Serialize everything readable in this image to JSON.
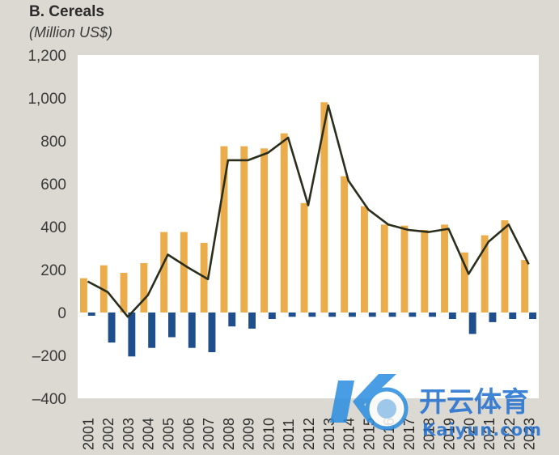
{
  "header": {
    "title": "B. Cereals",
    "subtitle": "(Million US$)"
  },
  "colors": {
    "background": "#dcd9d2",
    "plot_background": "#ffffff",
    "exports_bar": "#ebac4c",
    "imports_bar": "#1f4e8c",
    "line": "#2a2e1c"
  },
  "watermark": {
    "brand_cn": "开云体育",
    "brand_en": "Kaiyun.com"
  },
  "chart_data": {
    "type": "bar",
    "title": "B. Cereals",
    "subtitle": "(Million US$)",
    "xlabel": "",
    "ylabel": "",
    "categories": [
      "2001",
      "2002",
      "2003",
      "2004",
      "2005",
      "2006",
      "2007",
      "2008",
      "2009",
      "2010",
      "2011",
      "2012",
      "2013",
      "2014",
      "2015",
      "2016",
      "2017",
      "2018",
      "2019",
      "2020",
      "2021",
      "2022",
      "2023"
    ],
    "series": [
      {
        "kind": "bar",
        "color": "#ebac4c",
        "values": [
          160,
          220,
          185,
          230,
          375,
          375,
          325,
          775,
          775,
          765,
          835,
          510,
          980,
          635,
          495,
          410,
          405,
          385,
          410,
          280,
          360,
          430,
          245
        ]
      },
      {
        "kind": "bar",
        "color": "#1f4e8c",
        "values": [
          -15,
          -140,
          -205,
          -165,
          -115,
          -165,
          -185,
          -65,
          -75,
          -30,
          -20,
          -20,
          -20,
          -20,
          -20,
          -20,
          -20,
          -20,
          -30,
          -100,
          -45,
          -30,
          -30
        ]
      },
      {
        "kind": "line",
        "color": "#2a2e1c",
        "values": [
          145,
          95,
          -20,
          80,
          270,
          210,
          155,
          710,
          710,
          745,
          815,
          500,
          965,
          615,
          480,
          410,
          385,
          375,
          390,
          180,
          330,
          410,
          225
        ]
      }
    ],
    "ylim": [
      -400,
      1200
    ],
    "yticks": [
      -400,
      -200,
      0,
      200,
      400,
      600,
      800,
      1000,
      1200
    ],
    "ytick_labels": [
      "–400",
      "–200",
      "0",
      "200",
      "400",
      "600",
      "800",
      "1,000",
      "1,200"
    ],
    "grid": false,
    "legend": "none"
  }
}
